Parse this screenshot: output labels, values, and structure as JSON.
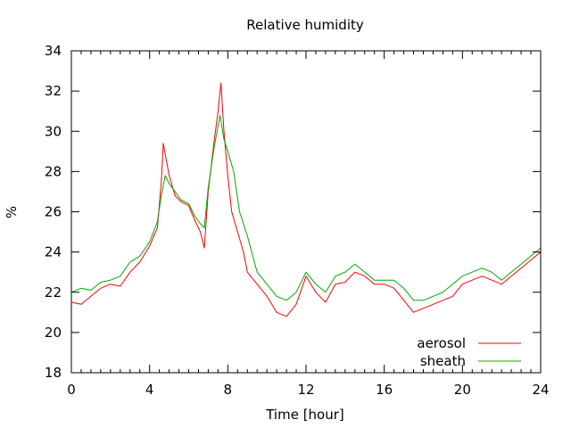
{
  "chart_data": {
    "type": "line",
    "title": "Relative humidity",
    "xlabel": "Time [hour]",
    "ylabel": "%",
    "xlim": [
      0,
      24
    ],
    "ylim": [
      18,
      34
    ],
    "x_ticks": [
      0,
      4,
      8,
      12,
      16,
      20,
      24
    ],
    "y_ticks": [
      18,
      20,
      22,
      24,
      26,
      28,
      30,
      32,
      34
    ],
    "grid": false,
    "legend_position": "bottom-right",
    "series": [
      {
        "name": "aerosol",
        "color": "#ff0000",
        "points": [
          [
            0,
            21.5
          ],
          [
            0.5,
            21.4
          ],
          [
            1,
            21.8
          ],
          [
            1.5,
            22.2
          ],
          [
            2,
            22.4
          ],
          [
            2.5,
            22.3
          ],
          [
            3,
            23.0
          ],
          [
            3.5,
            23.5
          ],
          [
            4,
            24.3
          ],
          [
            4.4,
            25.2
          ],
          [
            4.6,
            27.5
          ],
          [
            4.7,
            29.4
          ],
          [
            5,
            27.8
          ],
          [
            5.3,
            26.8
          ],
          [
            5.6,
            26.5
          ],
          [
            6,
            26.3
          ],
          [
            6.3,
            25.6
          ],
          [
            6.6,
            25.0
          ],
          [
            6.8,
            24.2
          ],
          [
            7,
            27.0
          ],
          [
            7.3,
            29.5
          ],
          [
            7.5,
            31.0
          ],
          [
            7.65,
            32.4
          ],
          [
            7.8,
            30.0
          ],
          [
            8,
            27.8
          ],
          [
            8.2,
            26.0
          ],
          [
            8.5,
            25.0
          ],
          [
            8.8,
            24.0
          ],
          [
            9,
            23.0
          ],
          [
            9.5,
            22.4
          ],
          [
            10,
            21.8
          ],
          [
            10.5,
            21.0
          ],
          [
            11,
            20.8
          ],
          [
            11.5,
            21.4
          ],
          [
            12,
            22.8
          ],
          [
            12.5,
            22.0
          ],
          [
            13,
            21.5
          ],
          [
            13.5,
            22.4
          ],
          [
            14,
            22.5
          ],
          [
            14.5,
            23.0
          ],
          [
            15,
            22.8
          ],
          [
            15.5,
            22.4
          ],
          [
            16,
            22.4
          ],
          [
            16.5,
            22.2
          ],
          [
            17,
            21.6
          ],
          [
            17.5,
            21.0
          ],
          [
            18,
            21.2
          ],
          [
            18.5,
            21.4
          ],
          [
            19,
            21.6
          ],
          [
            19.5,
            21.8
          ],
          [
            20,
            22.4
          ],
          [
            20.5,
            22.6
          ],
          [
            21,
            22.8
          ],
          [
            21.5,
            22.6
          ],
          [
            22,
            22.4
          ],
          [
            22.5,
            22.8
          ],
          [
            23,
            23.2
          ],
          [
            23.5,
            23.6
          ],
          [
            24,
            24.0
          ]
        ]
      },
      {
        "name": "sheath",
        "color": "#00aa00",
        "points": [
          [
            0,
            22.0
          ],
          [
            0.5,
            22.2
          ],
          [
            1,
            22.1
          ],
          [
            1.5,
            22.5
          ],
          [
            2,
            22.6
          ],
          [
            2.5,
            22.8
          ],
          [
            3,
            23.5
          ],
          [
            3.5,
            23.8
          ],
          [
            4,
            24.5
          ],
          [
            4.4,
            25.5
          ],
          [
            4.6,
            26.8
          ],
          [
            4.8,
            27.8
          ],
          [
            5,
            27.4
          ],
          [
            5.3,
            27.0
          ],
          [
            5.6,
            26.6
          ],
          [
            6,
            26.4
          ],
          [
            6.3,
            25.8
          ],
          [
            6.6,
            25.4
          ],
          [
            6.8,
            25.2
          ],
          [
            7,
            27.2
          ],
          [
            7.3,
            29.2
          ],
          [
            7.6,
            30.8
          ],
          [
            7.8,
            29.6
          ],
          [
            8,
            29.0
          ],
          [
            8.3,
            28.0
          ],
          [
            8.6,
            26.0
          ],
          [
            9,
            24.8
          ],
          [
            9.5,
            23.0
          ],
          [
            10,
            22.4
          ],
          [
            10.5,
            21.8
          ],
          [
            11,
            21.6
          ],
          [
            11.5,
            22.0
          ],
          [
            12,
            23.0
          ],
          [
            12.5,
            22.4
          ],
          [
            13,
            22.0
          ],
          [
            13.5,
            22.8
          ],
          [
            14,
            23.0
          ],
          [
            14.5,
            23.4
          ],
          [
            15,
            23.0
          ],
          [
            15.5,
            22.6
          ],
          [
            16,
            22.6
          ],
          [
            16.5,
            22.6
          ],
          [
            17,
            22.2
          ],
          [
            17.5,
            21.6
          ],
          [
            18,
            21.6
          ],
          [
            18.5,
            21.8
          ],
          [
            19,
            22.0
          ],
          [
            19.5,
            22.4
          ],
          [
            20,
            22.8
          ],
          [
            20.5,
            23.0
          ],
          [
            21,
            23.2
          ],
          [
            21.5,
            23.0
          ],
          [
            22,
            22.6
          ],
          [
            22.5,
            23.0
          ],
          [
            23,
            23.4
          ],
          [
            23.5,
            23.8
          ],
          [
            24,
            24.2
          ]
        ]
      }
    ]
  }
}
